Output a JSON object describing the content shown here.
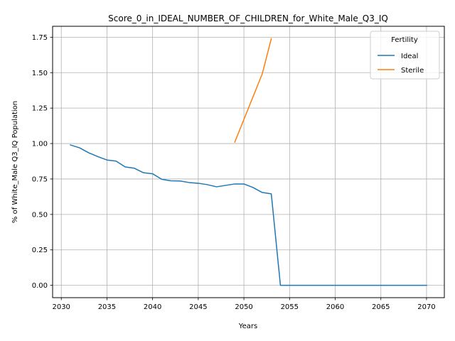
{
  "chart_data": {
    "type": "line",
    "title": "Score_0_in_IDEAL_NUMBER_OF_CHILDREN_for_White_Male_Q3_IQ",
    "xlabel": "Years",
    "ylabel": "% of White_Male Q3_IQ Population",
    "xlim": [
      2029.05,
      2071.95
    ],
    "ylim": [
      -0.087,
      1.827
    ],
    "xticks": [
      2030,
      2035,
      2040,
      2045,
      2050,
      2055,
      2060,
      2065,
      2070
    ],
    "yticks": [
      0.0,
      0.25,
      0.5,
      0.75,
      1.0,
      1.25,
      1.5,
      1.75
    ],
    "ytick_labels": [
      "0.00",
      "0.25",
      "0.50",
      "0.75",
      "1.00",
      "1.25",
      "1.50",
      "1.75"
    ],
    "grid": true,
    "legend": {
      "title": "Fertility",
      "position": "top-right"
    },
    "series": [
      {
        "name": "Ideal",
        "color": "#1f77b4",
        "x": [
          2031,
          2032,
          2033,
          2034,
          2035,
          2036,
          2037,
          2038,
          2039,
          2040,
          2041,
          2042,
          2043,
          2044,
          2045,
          2046,
          2047,
          2048,
          2049,
          2050,
          2051,
          2052,
          2053,
          2054,
          2055,
          2056,
          2057,
          2058,
          2059,
          2060,
          2061,
          2062,
          2063,
          2064,
          2065,
          2066,
          2067,
          2068,
          2069,
          2070
        ],
        "y": [
          0.99,
          0.97,
          0.935,
          0.908,
          0.884,
          0.876,
          0.835,
          0.826,
          0.794,
          0.787,
          0.748,
          0.737,
          0.736,
          0.725,
          0.72,
          0.71,
          0.695,
          0.705,
          0.715,
          0.715,
          0.69,
          0.655,
          0.645,
          0.0,
          0.0,
          0.0,
          0.0,
          0.0,
          0.0,
          0.0,
          0.0,
          0.0,
          0.0,
          0.0,
          0.0,
          0.0,
          0.0,
          0.0,
          0.0,
          0.0
        ]
      },
      {
        "name": "Sterile",
        "color": "#ff7f0e",
        "x": [
          2049,
          2050,
          2051,
          2052,
          2053
        ],
        "y": [
          1.01,
          1.17,
          1.33,
          1.49,
          1.74
        ]
      }
    ]
  }
}
